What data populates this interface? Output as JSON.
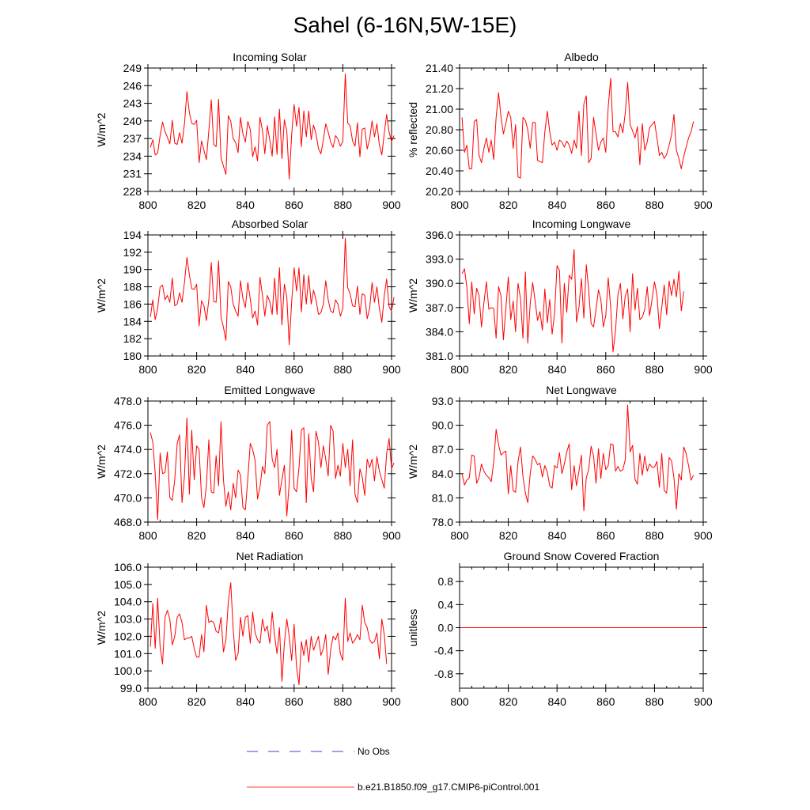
{
  "figure_title": "Sahel (6-16N,5W-15E)",
  "colors": {
    "model": "#ff0000",
    "obs": "#0000cc",
    "axis": "#000000"
  },
  "legend": [
    {
      "label": "No Obs",
      "style": "dashed",
      "color": "#0000cc"
    },
    {
      "label": "b.e21.B1850.f09_g17.CMIP6-piControl.001",
      "style": "solid",
      "color": "#ff0000"
    }
  ],
  "chart_data": [
    {
      "type": "line",
      "title": "Incoming Solar",
      "ylabel": "W/m^2",
      "xlim": [
        800,
        900
      ],
      "xticks": [
        "800",
        "820",
        "840",
        "860",
        "880",
        "900"
      ],
      "ylim": [
        228,
        249
      ],
      "yticks": [
        "228",
        "231",
        "234",
        "237",
        "240",
        "243",
        "246",
        "249"
      ],
      "series": [
        {
          "name": "b.e21.B1850.f09_g17.CMIP6-piControl.001",
          "x_start": 801,
          "values": [
            235.5,
            236.8,
            234.2,
            234.5,
            237.5,
            239.8,
            238.2,
            237.2,
            236.1,
            240.1,
            236.2,
            236.0,
            238.0,
            236.2,
            239.5,
            245.0,
            241.4,
            239.6,
            239.4,
            240.1,
            232.9,
            236.6,
            235.0,
            233.4,
            238.3,
            243.6,
            236.0,
            235.6,
            243.7,
            233.7,
            232.3,
            230.9,
            240.9,
            240.0,
            237.0,
            236.3,
            234.6,
            240.6,
            237.8,
            236.4,
            239.9,
            238.5,
            233.9,
            235.6,
            233.2,
            240.6,
            238.4,
            234.4,
            239.2,
            236.8,
            234.0,
            240.7,
            234.3,
            242.0,
            233.6,
            240.2,
            238.2,
            230.1,
            237.6,
            242.8,
            239.1,
            242.3,
            235.6,
            241.7,
            237.3,
            241.7,
            236.8,
            239.3,
            237.8,
            235.3,
            234.4,
            236.8,
            239.5,
            238.1,
            236.4,
            235.5,
            237.5,
            236.9,
            235.7,
            236.5,
            248.0,
            239.6,
            239.2,
            236.6,
            235.7,
            239.7,
            233.9,
            238.6,
            238.8,
            235.2,
            236.9,
            240.0,
            237.3,
            239.5,
            235.9,
            234.2,
            237.9,
            241.1,
            238.1,
            236.5,
            237.5
          ]
        }
      ]
    },
    {
      "type": "line",
      "title": "Albedo",
      "ylabel": "% reflected",
      "xlim": [
        800,
        900
      ],
      "xticks": [
        "800",
        "820",
        "840",
        "860",
        "880",
        "900"
      ],
      "ylim": [
        20.2,
        21.4
      ],
      "yticks": [
        "20.20",
        "20.40",
        "20.60",
        "20.80",
        "21.00",
        "21.20",
        "21.40"
      ],
      "series": [
        {
          "name": "b.e21.B1850.f09_g17.CMIP6-piControl.001",
          "x_start": 801,
          "values": [
            20.92,
            20.58,
            20.65,
            20.42,
            20.42,
            20.88,
            20.9,
            20.55,
            20.48,
            20.62,
            20.72,
            20.58,
            20.7,
            20.51,
            20.92,
            21.16,
            20.92,
            20.76,
            20.86,
            20.98,
            20.92,
            20.62,
            20.85,
            20.34,
            20.33,
            20.92,
            20.89,
            20.8,
            20.62,
            20.87,
            20.87,
            20.5,
            20.49,
            20.48,
            20.78,
            20.98,
            20.78,
            20.65,
            20.68,
            20.6,
            20.7,
            20.68,
            20.63,
            20.69,
            20.65,
            20.57,
            20.7,
            20.62,
            20.98,
            20.55,
            21.05,
            21.13,
            20.48,
            20.52,
            20.92,
            20.76,
            20.6,
            20.68,
            20.72,
            20.58,
            21.02,
            21.3,
            20.78,
            20.78,
            20.73,
            20.86,
            20.77,
            20.96,
            21.26,
            20.85,
            20.79,
            20.72,
            20.83,
            20.46,
            20.86,
            20.6,
            20.68,
            20.82,
            20.85,
            20.88,
            20.72,
            20.55,
            20.58,
            20.52,
            20.56,
            20.65,
            20.75,
            20.95,
            20.6,
            20.52,
            20.42,
            20.54,
            20.63,
            20.72,
            20.78,
            20.88
          ]
        }
      ]
    },
    {
      "type": "line",
      "title": "Absorbed Solar",
      "ylabel": "W/m^2",
      "xlim": [
        800,
        900
      ],
      "xticks": [
        "800",
        "820",
        "840",
        "860",
        "880",
        "900"
      ],
      "ylim": [
        180,
        194
      ],
      "yticks": [
        "180",
        "182",
        "184",
        "186",
        "188",
        "190",
        "192",
        "194"
      ],
      "series": [
        {
          "name": "b.e21.B1850.f09_g17.CMIP6-piControl.001",
          "x_start": 801,
          "values": [
            184.5,
            186.5,
            184.2,
            185.5,
            188.0,
            188.2,
            186.5,
            187.0,
            186.2,
            189.0,
            185.8,
            186.0,
            187.3,
            186.2,
            188.5,
            191.4,
            189.4,
            187.8,
            187.7,
            188.3,
            183.5,
            186.4,
            185.8,
            184.1,
            186.5,
            190.8,
            186.3,
            186.2,
            191.0,
            184.5,
            183.3,
            181.8,
            188.6,
            188.0,
            186.0,
            185.2,
            184.6,
            188.7,
            186.6,
            185.6,
            188.5,
            186.6,
            184.4,
            185.2,
            183.6,
            189.1,
            187.0,
            184.6,
            187.0,
            186.3,
            184.8,
            189.0,
            184.8,
            190.2,
            183.6,
            188.3,
            186.8,
            181.3,
            186.2,
            190.2,
            187.5,
            190.2,
            185.1,
            189.4,
            186.0,
            189.3,
            186.0,
            187.6,
            186.5,
            184.8,
            185.0,
            186.0,
            188.7,
            186.5,
            185.2,
            185.0,
            186.5,
            186.0,
            184.6,
            185.5,
            193.6,
            187.9,
            187.2,
            185.8,
            185.7,
            188.1,
            184.8,
            187.2,
            187.0,
            184.3,
            185.5,
            188.5,
            186.2,
            188.0,
            185.5,
            183.9,
            187.0,
            188.9,
            185.7,
            185.2,
            186.8
          ]
        }
      ]
    },
    {
      "type": "line",
      "title": "Incoming Longwave",
      "ylabel": "W/m^2",
      "xlim": [
        800,
        900
      ],
      "xticks": [
        "800",
        "820",
        "840",
        "860",
        "880",
        "900"
      ],
      "ylim": [
        381,
        396
      ],
      "yticks": [
        "381.0",
        "384.0",
        "387.0",
        "390.0",
        "393.0",
        "396.0"
      ],
      "series": [
        {
          "name": "b.e21.B1850.f09_g17.CMIP6-piControl.001",
          "x_start": 801,
          "values": [
            391.2,
            391.8,
            389.5,
            385.0,
            390.2,
            386.2,
            389.4,
            388.5,
            384.6,
            387.6,
            390.2,
            386.8,
            387.0,
            386.9,
            383.2,
            389.6,
            388.4,
            383.0,
            386.8,
            390.8,
            385.5,
            387.8,
            384.0,
            390.0,
            388.1,
            383.2,
            391.4,
            382.6,
            387.5,
            390.1,
            387.8,
            385.4,
            386.5,
            384.2,
            389.3,
            385.1,
            388.0,
            383.7,
            386.3,
            392.2,
            391.6,
            382.6,
            390.0,
            386.4,
            391.0,
            390.5,
            394.2,
            385.2,
            387.0,
            390.6,
            385.7,
            392.3,
            389.2,
            385.0,
            384.6,
            386.8,
            389.2,
            388.0,
            384.6,
            386.0,
            390.7,
            387.1,
            381.5,
            384.1,
            388.6,
            390.0,
            385.6,
            388.4,
            389.3,
            384.0,
            391.2,
            386.7,
            389.4,
            385.5,
            385.8,
            386.8,
            389.6,
            386.0,
            388.0,
            390.2,
            388.6,
            384.4,
            387.0,
            389.8,
            386.1,
            390.3,
            388.5,
            390.5,
            388.3,
            391.5,
            386.6,
            389.0
          ]
        }
      ]
    },
    {
      "type": "line",
      "title": "Emitted Longwave",
      "ylabel": "W/m^2",
      "xlim": [
        800,
        900
      ],
      "xticks": [
        "800",
        "820",
        "840",
        "860",
        "880",
        "900"
      ],
      "ylim": [
        468,
        478
      ],
      "yticks": [
        "468.0",
        "470.0",
        "472.0",
        "474.0",
        "476.0",
        "478.0"
      ],
      "series": [
        {
          "name": "b.e21.B1850.f09_g17.CMIP6-piControl.001",
          "x_start": 801,
          "values": [
            475.4,
            474.6,
            472.0,
            468.2,
            473.7,
            472.0,
            472.1,
            473.8,
            470.0,
            469.8,
            471.5,
            474.5,
            475.2,
            469.6,
            471.8,
            476.6,
            470.3,
            475.6,
            471.5,
            474.3,
            474.0,
            470.0,
            469.2,
            471.0,
            474.8,
            470.5,
            470.4,
            473.5,
            471.0,
            476.3,
            471.5,
            469.3,
            470.5,
            469.0,
            471.2,
            470.0,
            472.3,
            471.9,
            469.2,
            469.0,
            471.6,
            474.5,
            474.0,
            473.1,
            469.9,
            470.9,
            472.6,
            472.0,
            476.0,
            476.3,
            473.2,
            472.5,
            474.0,
            470.2,
            471.5,
            472.7,
            468.5,
            471.2,
            475.6,
            470.8,
            470.5,
            472.5,
            475.6,
            475.8,
            469.6,
            475.3,
            471.6,
            470.5,
            475.5,
            474.6,
            472.5,
            474.3,
            473.2,
            471.8,
            476.0,
            475.5,
            471.6,
            472.7,
            471.8,
            474.5,
            472.5,
            474.0,
            471.0,
            474.8,
            470.3,
            469.6,
            472.4,
            471.7,
            470.2,
            473.2,
            472.5,
            473.2,
            471.4,
            473.4,
            472.2,
            471.5,
            470.8,
            473.7,
            474.9,
            472.4,
            472.9
          ]
        }
      ]
    },
    {
      "type": "line",
      "title": "Net Longwave",
      "ylabel": "W/m^2",
      "xlim": [
        800,
        900
      ],
      "xticks": [
        "800",
        "820",
        "840",
        "860",
        "880",
        "900"
      ],
      "ylim": [
        78,
        93
      ],
      "yticks": [
        "78.0",
        "81.0",
        "84.0",
        "87.0",
        "90.0",
        "93.0"
      ],
      "series": [
        {
          "name": "b.e21.B1850.f09_g17.CMIP6-piControl.001",
          "x_start": 801,
          "values": [
            84.0,
            82.6,
            83.2,
            83.5,
            86.3,
            86.2,
            82.8,
            83.5,
            85.2,
            84.3,
            83.8,
            83.5,
            83.0,
            85.4,
            89.5,
            87.6,
            86.3,
            86.6,
            86.8,
            81.5,
            85.0,
            81.9,
            81.7,
            85.5,
            87.3,
            83.7,
            81.6,
            80.4,
            84.0,
            86.2,
            85.8,
            85.1,
            85.3,
            83.6,
            85.0,
            84.2,
            82.5,
            82.2,
            85.0,
            84.7,
            86.6,
            84.0,
            85.2,
            86.7,
            87.7,
            82.0,
            85.0,
            82.5,
            84.3,
            86.3,
            79.4,
            83.5,
            84.5,
            87.4,
            86.2,
            82.8,
            87.1,
            83.4,
            86.5,
            84.5,
            85.0,
            87.7,
            87.6,
            84.3,
            84.9,
            84.3,
            84.5,
            85.7,
            92.5,
            86.7,
            87.5,
            83.3,
            82.7,
            86.5,
            83.8,
            86.2,
            84.3,
            85.2,
            84.8,
            84.8,
            85.5,
            82.3,
            86.5,
            81.9,
            81.6,
            86.0,
            85.6,
            83.5,
            79.6,
            84.0,
            83.2,
            87.3,
            86.5,
            85.0,
            83.2,
            83.8
          ]
        }
      ]
    },
    {
      "type": "line",
      "title": "Net Radiation",
      "ylabel": "W/m^2",
      "xlim": [
        800,
        900
      ],
      "xticks": [
        "800",
        "820",
        "840",
        "860",
        "880",
        "900"
      ],
      "ylim": [
        99,
        106
      ],
      "yticks": [
        "99.0",
        "100.0",
        "101.0",
        "102.0",
        "103.0",
        "104.0",
        "105.0",
        "106.0"
      ],
      "series": [
        {
          "name": "b.e21.B1850.f09_g17.CMIP6-piControl.001",
          "x_start": 801,
          "values": [
            101.4,
            103.9,
            101.3,
            104.2,
            101.4,
            100.4,
            103.1,
            103.5,
            103.0,
            101.5,
            102.0,
            103.1,
            103.3,
            102.8,
            101.8,
            101.9,
            101.9,
            102.0,
            101.3,
            100.8,
            100.8,
            102.1,
            101.1,
            103.8,
            102.8,
            102.9,
            102.8,
            102.3,
            102.2,
            103.1,
            101.1,
            101.8,
            104.0,
            105.1,
            102.4,
            100.6,
            101.0,
            103.1,
            102.0,
            103.1,
            103.2,
            101.6,
            103.4,
            102.2,
            101.8,
            101.6,
            103.0,
            102.3,
            102.6,
            101.6,
            103.4,
            102.0,
            101.0,
            102.5,
            99.4,
            101.6,
            103.0,
            102.0,
            100.6,
            102.7,
            100.2,
            99.2,
            101.7,
            100.9,
            101.8,
            100.5,
            102.0,
            101.2,
            101.6,
            102.0,
            100.9,
            101.3,
            102.1,
            99.8,
            101.2,
            102.0,
            101.8,
            102.2,
            101.0,
            100.6,
            104.2,
            101.7,
            102.2,
            101.6,
            101.8,
            102.1,
            101.8,
            103.8,
            102.8,
            102.5,
            101.8,
            101.6,
            101.7,
            102.2,
            100.7,
            103.0,
            102.1,
            100.4
          ]
        }
      ]
    },
    {
      "type": "line",
      "title": "Ground Snow Covered Fraction",
      "ylabel": "unitless",
      "xlim": [
        800,
        900
      ],
      "xticks": [
        "800",
        "820",
        "840",
        "860",
        "880",
        "900"
      ],
      "ylim": [
        -1.05,
        1.05
      ],
      "yticks": [
        "-0.8",
        "-0.4",
        "0.0",
        "0.4",
        "0.8"
      ],
      "series": [
        {
          "name": "b.e21.B1850.f09_g17.CMIP6-piControl.001",
          "x_start": 801,
          "constant": 0.0
        }
      ]
    }
  ]
}
